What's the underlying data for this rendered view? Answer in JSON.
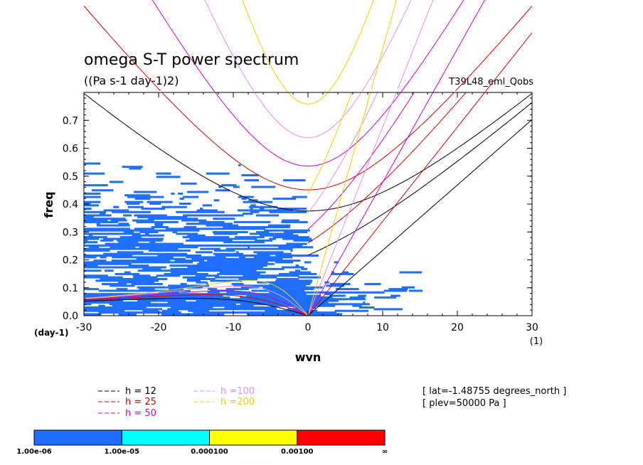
{
  "title": "omega S-T power spectrum",
  "subtitle": "((Pa s-1 day-1)2)",
  "run_label": "T39L48_eml_Qobs",
  "info": [
    "[ lat=-1.48755 degrees_north ]",
    "[ plev=50000 Pa ]"
  ],
  "chart_data": {
    "type": "heatmap",
    "xlabel": "wvn",
    "ylabel": "freq",
    "x_unit": "(1)",
    "y_unit": "(day-1)",
    "xlim": [
      -30,
      30
    ],
    "ylim": [
      0,
      0.8
    ],
    "x_ticks": [
      "-30",
      "-20",
      "-10",
      "0",
      "10",
      "20",
      "30"
    ],
    "y_ticks": [
      "0.0",
      "0.1",
      "0.2",
      "0.3",
      "0.4",
      "0.5",
      "0.6",
      "0.7"
    ],
    "colorbar": {
      "labels": [
        "1.00e-06",
        "1.00e-05",
        "0.000100",
        "0.00100",
        "∞"
      ],
      "colors": [
        "#1e6eff",
        "#00ffff",
        "#ffff00",
        "#ff0000"
      ]
    },
    "dispersion_curves": [
      {
        "name": "h = 12",
        "h": 12,
        "color": "#000000"
      },
      {
        "name": "h = 25",
        "h": 25,
        "color": "#e00000"
      },
      {
        "name": "h = 50",
        "h": 50,
        "color": "#d000d0"
      },
      {
        "name": "h =100",
        "h": 100,
        "color": "#e890e0"
      },
      {
        "name": "h =200",
        "h": 200,
        "color": "#f0d000"
      }
    ]
  }
}
